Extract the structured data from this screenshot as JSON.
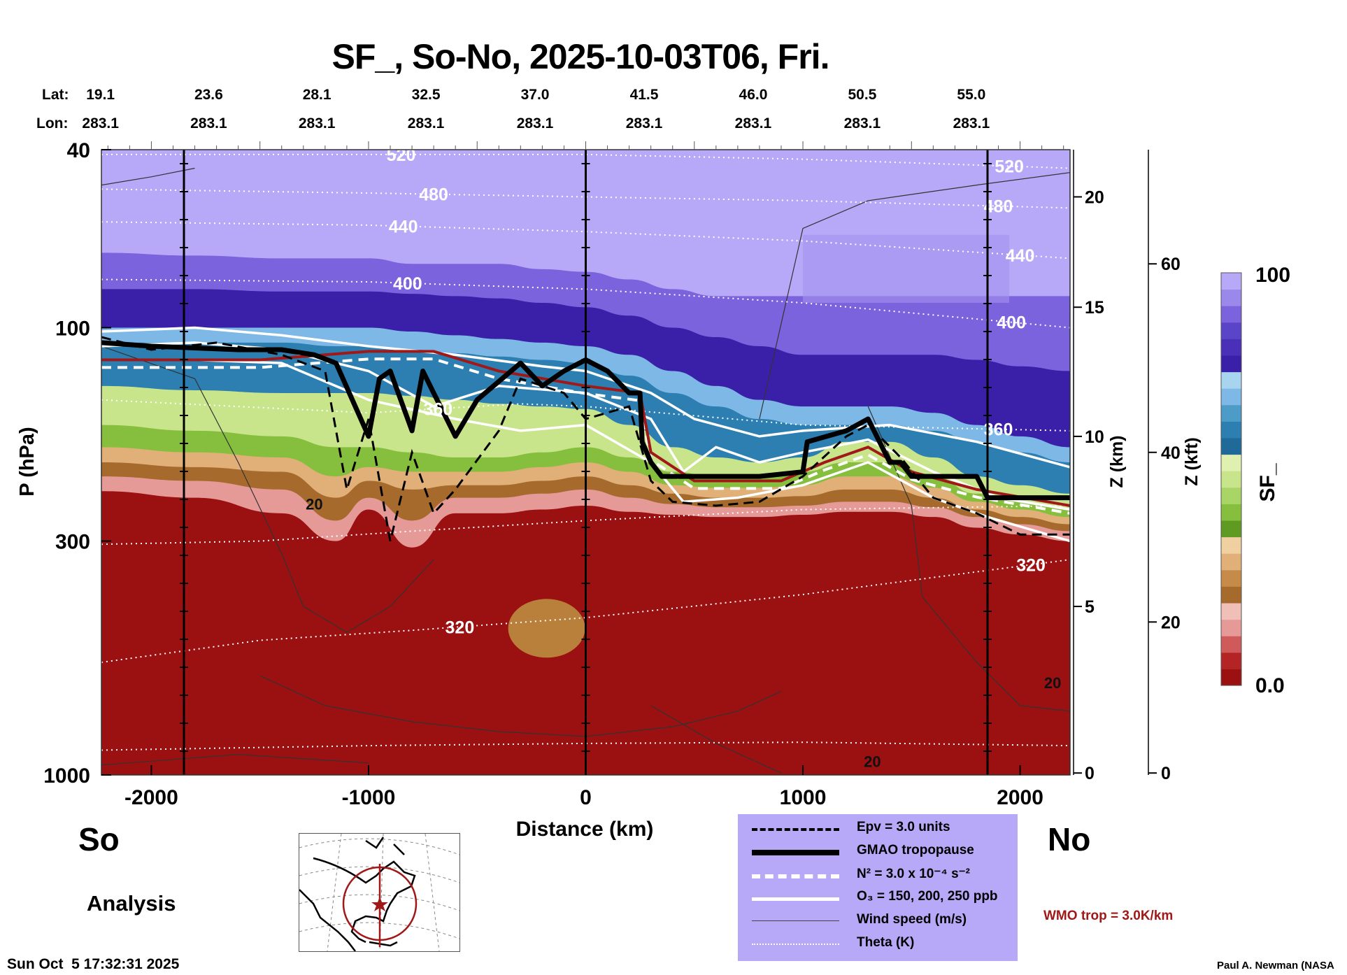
{
  "title": "SF_, So-No, 2025-10-03T06, Fri.",
  "header": {
    "lat_label": "Lat:",
    "lon_label": "Lon:",
    "lat": [
      "19.1",
      "23.6",
      "28.1",
      "32.5",
      "37.0",
      "41.5",
      "46.0",
      "50.5",
      "55.0"
    ],
    "lon": [
      "283.1",
      "283.1",
      "283.1",
      "283.1",
      "283.1",
      "283.1",
      "283.1",
      "283.1",
      "283.1"
    ]
  },
  "labels": {
    "south": "So",
    "north": "No",
    "analysis": "Analysis",
    "timestamp": "Sun Oct  5 17:32:31 2025",
    "wmo": "WMO trop = 3.0K/km",
    "author": "Paul A. Newman (NASA"
  },
  "legend": [
    {
      "label": "Epv = 3.0 units",
      "style": "dashed-black"
    },
    {
      "label": "GMAO tropopause",
      "style": "thick-black"
    },
    {
      "label": "N² = 3.0 x 10⁻⁴ s⁻²",
      "style": "dashed-white"
    },
    {
      "label": "O₃ = 150, 200, 250 ppb",
      "style": "solid-white"
    },
    {
      "label": "Wind speed (m/s)",
      "style": "thin-gray"
    },
    {
      "label": "Theta (K)",
      "style": "dotted-white"
    }
  ],
  "colors": {
    "wmo": "#a01818",
    "legend_bg": "#b7a9f7"
  },
  "chart_data": {
    "type": "heatmap",
    "title": "SF_, So-No, 2025-10-03T06, Fri.",
    "xlabel": "Distance (km)",
    "ylabel": "P (hPa)",
    "z_km_label": "Z (km)",
    "z_kft_label": "Z (kft)",
    "xlim": [
      -2230,
      2230
    ],
    "ylim": [
      1000,
      40
    ],
    "x_ticks": [
      -2000,
      -1000,
      0,
      1000,
      2000
    ],
    "p_ticks": [
      40,
      100,
      300,
      1000
    ],
    "z_km_ticks": [
      {
        "v": "20",
        "p": 51
      },
      {
        "v": "15",
        "p": 90
      },
      {
        "v": "10",
        "p": 175
      },
      {
        "v": "5",
        "p": 420
      },
      {
        "v": "0",
        "p": 990
      }
    ],
    "z_kft_ticks": [
      {
        "v": "60",
        "p": 72
      },
      {
        "v": "40",
        "p": 190
      },
      {
        "v": "20",
        "p": 455
      },
      {
        "v": "0",
        "p": 990
      }
    ],
    "section_lines_km": [
      -1850,
      0,
      1850
    ],
    "colorbar": {
      "label": "SF_",
      "min_label": "0.0",
      "max_label": "100",
      "colors": [
        "#9b1010",
        "#b52424",
        "#d05a5a",
        "#e59a98",
        "#f0c0b8",
        "#a66a2c",
        "#c68b48",
        "#e0b078",
        "#f0d0a0",
        "#5f9a22",
        "#86bf3e",
        "#a9d466",
        "#c9e58c",
        "#e0f0b0",
        "#1f6a98",
        "#2c7fb0",
        "#4d9cc8",
        "#7db8e6",
        "#a8d4f0",
        "#3a20a8",
        "#4a30b8",
        "#5a44c8",
        "#7a63dc",
        "#9a88ea",
        "#b7a9f7"
      ]
    },
    "x_samples": [
      -2230,
      -1800,
      -1400,
      -1150,
      -1000,
      -800,
      -600,
      -400,
      -200,
      0,
      200,
      400,
      600,
      800,
      1000,
      1200,
      1400,
      1600,
      1800,
      2000,
      2230
    ],
    "layers": [
      {
        "color": "#b7a9f7",
        "top": [
          40,
          40,
          40,
          40,
          40,
          40,
          40,
          40,
          40,
          40,
          40,
          40,
          40,
          40,
          40,
          40,
          40,
          40,
          40,
          40,
          40
        ]
      },
      {
        "color": "#7a63dc",
        "top": [
          68,
          69,
          70,
          70,
          70,
          72,
          72,
          72,
          74,
          75,
          78,
          82,
          85,
          85,
          85,
          85,
          85,
          85,
          85,
          85,
          85
        ]
      },
      {
        "color": "#3a20a8",
        "top": [
          82,
          82,
          83,
          83,
          83,
          84,
          85,
          86,
          88,
          90,
          94,
          100,
          105,
          110,
          115,
          115,
          115,
          115,
          118,
          122,
          125
        ]
      },
      {
        "color": "#7db8e6",
        "top": [
          100,
          100,
          100,
          100,
          100,
          102,
          104,
          106,
          108,
          110,
          115,
          125,
          135,
          145,
          150,
          150,
          150,
          155,
          165,
          175,
          185
        ]
      },
      {
        "color": "#2c7fb0",
        "top": [
          108,
          108,
          108,
          110,
          110,
          112,
          114,
          116,
          118,
          120,
          128,
          140,
          150,
          160,
          165,
          165,
          165,
          170,
          180,
          190,
          200
        ]
      },
      {
        "color": "#c9e58c",
        "top": [
          135,
          138,
          140,
          140,
          140,
          142,
          145,
          148,
          150,
          152,
          165,
          185,
          195,
          200,
          195,
          180,
          180,
          195,
          215,
          225,
          235
        ]
      },
      {
        "color": "#86bf3e",
        "top": [
          165,
          170,
          175,
          185,
          185,
          190,
          195,
          195,
          190,
          185,
          195,
          210,
          215,
          215,
          210,
          200,
          200,
          215,
          235,
          245,
          255
        ]
      },
      {
        "color": "#e0b078",
        "top": [
          185,
          190,
          195,
          215,
          205,
          210,
          210,
          210,
          205,
          200,
          210,
          225,
          228,
          228,
          225,
          215,
          215,
          228,
          245,
          255,
          265
        ]
      },
      {
        "color": "#a66a2c",
        "top": [
          200,
          205,
          210,
          240,
          220,
          230,
          225,
          225,
          220,
          215,
          225,
          235,
          240,
          240,
          238,
          230,
          230,
          240,
          255,
          265,
          275
        ]
      },
      {
        "color": "#e59a98",
        "top": [
          215,
          220,
          230,
          270,
          240,
          270,
          240,
          240,
          235,
          230,
          240,
          248,
          252,
          252,
          250,
          245,
          245,
          252,
          265,
          275,
          285
        ]
      },
      {
        "color": "#9b1010",
        "top": [
          232,
          240,
          260,
          300,
          255,
          310,
          260,
          260,
          255,
          250,
          258,
          262,
          265,
          265,
          262,
          258,
          258,
          265,
          280,
          290,
          300
        ]
      }
    ],
    "blob": {
      "x": -180,
      "p": 470,
      "color": "#b9803c"
    },
    "gmao_tropopause": [
      [
        -2230,
        108
      ],
      [
        -2000,
        110
      ],
      [
        -1600,
        112
      ],
      [
        -1400,
        112
      ],
      [
        -1250,
        115
      ],
      [
        -1150,
        120
      ],
      [
        -1000,
        175
      ],
      [
        -950,
        130
      ],
      [
        -900,
        125
      ],
      [
        -800,
        170
      ],
      [
        -750,
        125
      ],
      [
        -700,
        140
      ],
      [
        -600,
        175
      ],
      [
        -500,
        145
      ],
      [
        -300,
        120
      ],
      [
        -200,
        135
      ],
      [
        -100,
        125
      ],
      [
        0,
        118
      ],
      [
        100,
        125
      ],
      [
        200,
        140
      ],
      [
        250,
        140
      ],
      [
        260,
        180
      ],
      [
        300,
        200
      ],
      [
        350,
        215
      ],
      [
        800,
        215
      ],
      [
        1000,
        210
      ],
      [
        1020,
        180
      ],
      [
        1200,
        170
      ],
      [
        1300,
        160
      ],
      [
        1400,
        200
      ],
      [
        1450,
        200
      ],
      [
        1500,
        215
      ],
      [
        1800,
        215
      ],
      [
        1850,
        240
      ],
      [
        2230,
        240
      ]
    ],
    "wmo_tropopause": [
      [
        -2230,
        118
      ],
      [
        -1500,
        118
      ],
      [
        -1000,
        113
      ],
      [
        -700,
        113
      ],
      [
        -400,
        125
      ],
      [
        0,
        135
      ],
      [
        250,
        140
      ],
      [
        300,
        190
      ],
      [
        500,
        220
      ],
      [
        900,
        220
      ],
      [
        1100,
        200
      ],
      [
        1300,
        185
      ],
      [
        1500,
        210
      ],
      [
        1800,
        230
      ],
      [
        2230,
        250
      ]
    ],
    "epv": [
      [
        -2230,
        105
      ],
      [
        -2000,
        112
      ],
      [
        -1700,
        108
      ],
      [
        -1400,
        115
      ],
      [
        -1200,
        125
      ],
      [
        -1100,
        230
      ],
      [
        -1000,
        160
      ],
      [
        -900,
        300
      ],
      [
        -800,
        190
      ],
      [
        -700,
        260
      ],
      [
        -600,
        230
      ],
      [
        -400,
        170
      ],
      [
        -300,
        130
      ],
      [
        -100,
        140
      ],
      [
        0,
        160
      ],
      [
        200,
        150
      ],
      [
        300,
        220
      ],
      [
        400,
        245
      ],
      [
        600,
        250
      ],
      [
        800,
        245
      ],
      [
        1000,
        215
      ],
      [
        1200,
        175
      ],
      [
        1300,
        165
      ],
      [
        1450,
        195
      ],
      [
        1600,
        240
      ],
      [
        1800,
        260
      ],
      [
        2000,
        290
      ],
      [
        2230,
        290
      ]
    ],
    "o3": [
      [
        [
          -2230,
          102
        ],
        [
          -1800,
          100
        ],
        [
          -1400,
          104
        ],
        [
          -1000,
          110
        ],
        [
          -600,
          115
        ],
        [
          -200,
          122
        ],
        [
          0,
          125
        ],
        [
          300,
          140
        ],
        [
          500,
          160
        ],
        [
          800,
          175
        ],
        [
          1000,
          170
        ],
        [
          1400,
          165
        ],
        [
          1800,
          180
        ],
        [
          2230,
          205
        ]
      ],
      [
        [
          -2230,
          110
        ],
        [
          -1800,
          108
        ],
        [
          -1400,
          112
        ],
        [
          -1000,
          125
        ],
        [
          -700,
          150
        ],
        [
          -400,
          135
        ],
        [
          0,
          140
        ],
        [
          300,
          160
        ],
        [
          450,
          210
        ],
        [
          600,
          185
        ],
        [
          800,
          200
        ],
        [
          1000,
          190
        ],
        [
          1300,
          178
        ],
        [
          1600,
          210
        ],
        [
          1900,
          240
        ],
        [
          2230,
          255
        ]
      ],
      [
        [
          -2230,
          118
        ],
        [
          -1800,
          118
        ],
        [
          -1400,
          120
        ],
        [
          -1000,
          145
        ],
        [
          -600,
          160
        ],
        [
          -300,
          170
        ],
        [
          0,
          165
        ],
        [
          300,
          200
        ],
        [
          450,
          245
        ],
        [
          700,
          240
        ],
        [
          1000,
          225
        ],
        [
          1300,
          200
        ],
        [
          1600,
          240
        ],
        [
          1850,
          265
        ],
        [
          2230,
          300
        ]
      ]
    ],
    "theta": [
      {
        "label": "520",
        "pts": [
          [
            -2230,
            41
          ],
          [
            -1000,
            41
          ],
          [
            0,
            41
          ],
          [
            1000,
            42
          ],
          [
            2230,
            44
          ]
        ],
        "lx": -850,
        "rx": 1950
      },
      {
        "label": "480",
        "pts": [
          [
            -2230,
            49
          ],
          [
            -1000,
            50
          ],
          [
            0,
            51
          ],
          [
            1000,
            52
          ],
          [
            2230,
            54
          ]
        ],
        "lx": -700,
        "rx": 1900
      },
      {
        "label": "440",
        "pts": [
          [
            -2230,
            58
          ],
          [
            -1000,
            59
          ],
          [
            0,
            61
          ],
          [
            1000,
            64
          ],
          [
            2230,
            70
          ]
        ],
        "lx": -840,
        "rx": 2000
      },
      {
        "label": "400",
        "pts": [
          [
            -2230,
            78
          ],
          [
            -1000,
            79
          ],
          [
            0,
            82
          ],
          [
            1000,
            88
          ],
          [
            2230,
            100
          ]
        ],
        "lx": -820,
        "rx": 1960
      },
      {
        "label": "360",
        "pts": [
          [
            -2230,
            145
          ],
          [
            -1000,
            155
          ],
          [
            -300,
            148
          ],
          [
            0,
            150
          ],
          [
            1000,
            165
          ],
          [
            2230,
            170
          ]
        ],
        "lx": -680,
        "rx": 1900
      },
      {
        "label": "320",
        "pts": [
          [
            -2230,
            560
          ],
          [
            -1500,
            500
          ],
          [
            -800,
            475
          ],
          [
            0,
            445
          ],
          [
            1000,
            395
          ],
          [
            2230,
            330
          ]
        ],
        "lx": -580,
        "rx": 2050
      },
      {
        "label": "",
        "pts": [
          [
            -2230,
            305
          ],
          [
            -1500,
            300
          ],
          [
            -800,
            285
          ],
          [
            0,
            270
          ],
          [
            1000,
            255
          ],
          [
            2230,
            250
          ]
        ],
        "lx": null,
        "rx": null
      },
      {
        "label": "",
        "pts": [
          [
            -2230,
            880
          ],
          [
            -1000,
            860
          ],
          [
            0,
            850
          ],
          [
            1000,
            845
          ],
          [
            2230,
            860
          ]
        ],
        "lx": null,
        "rx": null
      }
    ],
    "wind_labels": [
      {
        "label": "20",
        "x": -1250,
        "p": 255
      },
      {
        "label": "20",
        "x": 1320,
        "p": 960
      },
      {
        "label": "20",
        "x": 2150,
        "p": 640
      }
    ],
    "wind": [
      [
        [
          -2230,
          48
        ],
        [
          -2000,
          46
        ],
        [
          -1800,
          44
        ]
      ],
      [
        [
          -2230,
          110
        ],
        [
          -1800,
          130
        ],
        [
          -1600,
          200
        ],
        [
          -1400,
          320
        ],
        [
          -1300,
          420
        ],
        [
          -1100,
          480
        ],
        [
          -900,
          420
        ],
        [
          -700,
          330
        ]
      ],
      [
        [
          -1500,
          600
        ],
        [
          -1200,
          700
        ],
        [
          -800,
          760
        ],
        [
          -400,
          800
        ],
        [
          0,
          820
        ],
        [
          400,
          780
        ],
        [
          700,
          720
        ],
        [
          900,
          650
        ]
      ],
      [
        [
          300,
          700
        ],
        [
          600,
          850
        ],
        [
          900,
          990
        ]
      ],
      [
        [
          800,
          160
        ],
        [
          1000,
          60
        ],
        [
          1300,
          52
        ],
        [
          1800,
          48
        ],
        [
          2230,
          45
        ]
      ],
      [
        [
          1300,
          150
        ],
        [
          1500,
          250
        ],
        [
          1550,
          400
        ],
        [
          1800,
          560
        ],
        [
          2000,
          700
        ],
        [
          2230,
          720
        ]
      ],
      [
        [
          -2230,
          950
        ],
        [
          -1600,
          900
        ],
        [
          -1000,
          940
        ]
      ]
    ]
  }
}
